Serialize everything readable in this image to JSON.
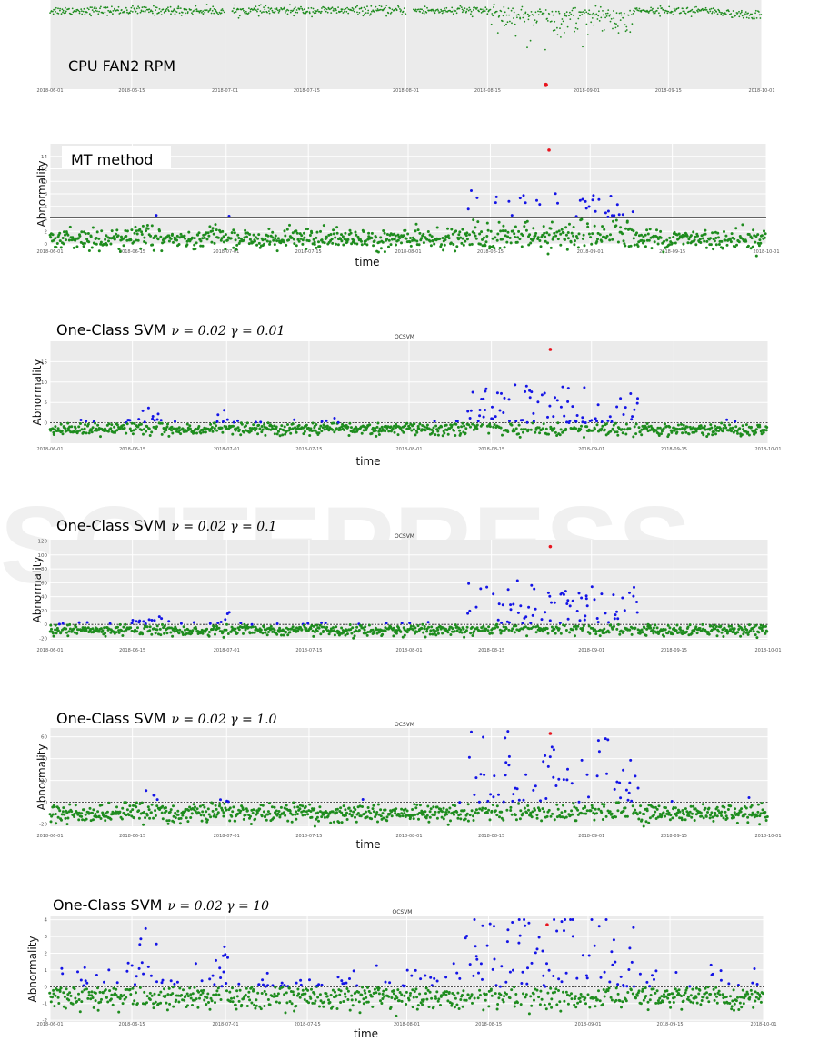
{
  "chart_data": [
    {
      "type": "scatter",
      "caption": "CPU FAN2 RPM",
      "title": "",
      "xlabel": "",
      "ylabel": "",
      "x_range": [
        "2018-06-01",
        "2018-10-01"
      ],
      "x_ticks": [
        "2018-06-01",
        "2018-06-15",
        "2018-07-01",
        "2018-07-15",
        "2018-08-01",
        "2018-08-15",
        "2018-09-01",
        "2018-09-15",
        "2018-10-01"
      ],
      "ylim": [
        1800,
        6000
      ],
      "y_ticks": [],
      "threshold": null,
      "normal_band": {
        "center": 5500,
        "spread": 100
      },
      "anomaly_point": {
        "x": "2018-08-25",
        "y": 2000
      },
      "series": [
        {
          "color": "#1e8c1e",
          "role": "normal"
        },
        {
          "color": "#e8141e",
          "role": "anomaly"
        }
      ]
    },
    {
      "type": "scatter",
      "caption": "MT method",
      "title": "",
      "xlabel": "time",
      "ylabel": "Abnormality",
      "x_range": [
        "2018-06-01",
        "2018-10-01"
      ],
      "x_ticks": [
        "2018-06-01",
        "2018-06-15",
        "2018-07-01",
        "2018-07-15",
        "2018-08-01",
        "2018-08-15",
        "2018-09-01",
        "2018-09-15",
        "2018-10-01"
      ],
      "ylim": [
        0,
        16
      ],
      "y_ticks": [
        "0",
        "2",
        "4",
        "6",
        "8",
        "10",
        "12",
        "14"
      ],
      "threshold": 4.2,
      "threshold_style": "solid",
      "normal_band": {
        "center": 0.8,
        "spread": 0.8
      },
      "anomaly_point": {
        "x": "2018-08-25",
        "y": 15
      },
      "series": [
        {
          "color": "#1e8c1e",
          "role": "normal"
        },
        {
          "color": "#1414e6",
          "role": "abnormal"
        },
        {
          "color": "#e8141e",
          "role": "anomaly"
        }
      ]
    },
    {
      "type": "scatter",
      "caption": "One-Class SVM",
      "caption_params": "𝜈 = 0.02  𝛾 = 0.01",
      "title": "OCSVM",
      "xlabel": "time",
      "ylabel": "Abnormality",
      "x_range": [
        "2018-06-01",
        "2018-10-01"
      ],
      "x_ticks": [
        "2018-06-01",
        "2018-06-15",
        "2018-07-01",
        "2018-07-15",
        "2018-08-01",
        "2018-08-15",
        "2018-09-01",
        "2018-09-15",
        "2018-10-01"
      ],
      "ylim": [
        -5,
        20
      ],
      "y_ticks": [
        "0",
        "5",
        "10",
        "15"
      ],
      "threshold": 0,
      "threshold_style": "dashed",
      "normal_band": {
        "center": -1.5,
        "spread": 0.8
      },
      "anomaly_point": {
        "x": "2018-08-25",
        "y": 18
      },
      "series": [
        {
          "color": "#1e8c1e",
          "role": "normal"
        },
        {
          "color": "#1414e6",
          "role": "abnormal"
        },
        {
          "color": "#e8141e",
          "role": "anomaly"
        }
      ]
    },
    {
      "type": "scatter",
      "caption": "One-Class SVM",
      "caption_params": "𝜈 = 0.02  𝛾 = 0.1",
      "title": "OCSVM",
      "xlabel": "",
      "ylabel": "Abnormality",
      "x_range": [
        "2018-06-01",
        "2018-10-01"
      ],
      "x_ticks": [
        "2018-06-01",
        "2018-06-15",
        "2018-07-01",
        "2018-07-15",
        "2018-08-01",
        "2018-08-15",
        "2018-09-01",
        "2018-09-15",
        "2018-10-01"
      ],
      "ylim": [
        -22,
        122
      ],
      "y_ticks": [
        "-20",
        "0",
        "20",
        "40",
        "60",
        "80",
        "100",
        "120"
      ],
      "threshold": 0,
      "threshold_style": "dashed",
      "normal_band": {
        "center": -8,
        "spread": 4
      },
      "anomaly_point": {
        "x": "2018-08-25",
        "y": 112
      },
      "series": [
        {
          "color": "#1e8c1e",
          "role": "normal"
        },
        {
          "color": "#1414e6",
          "role": "abnormal"
        },
        {
          "color": "#e8141e",
          "role": "anomaly"
        }
      ]
    },
    {
      "type": "scatter",
      "caption": "One-Class SVM",
      "caption_params": "𝜈 = 0.02  𝛾 = 1.0",
      "title": "OCSVM",
      "xlabel": "time",
      "ylabel": "Abnormality",
      "x_range": [
        "2018-06-01",
        "2018-10-01"
      ],
      "x_ticks": [
        "2018-06-01",
        "2018-06-15",
        "2018-07-01",
        "2018-07-15",
        "2018-08-01",
        "2018-08-15",
        "2018-09-01",
        "2018-09-15",
        "2018-10-01"
      ],
      "ylim": [
        -22,
        68
      ],
      "y_ticks": [
        "-20",
        "0",
        "20",
        "40",
        "60"
      ],
      "threshold": 0,
      "threshold_style": "dashed",
      "normal_band": {
        "center": -10,
        "spread": 4
      },
      "anomaly_point": {
        "x": "2018-08-25",
        "y": 63
      },
      "series": [
        {
          "color": "#1e8c1e",
          "role": "normal"
        },
        {
          "color": "#1414e6",
          "role": "abnormal"
        },
        {
          "color": "#e8141e",
          "role": "anomaly"
        }
      ]
    },
    {
      "type": "scatter",
      "caption": "One-Class SVM",
      "caption_params": "𝜈 = 0.02  𝛾 = 10",
      "title": "OCSVM",
      "xlabel": "time",
      "ylabel": "Abnormality",
      "x_range": [
        "2018-06-01",
        "2018-10-01"
      ],
      "x_ticks": [
        "2018-06-01",
        "2018-06-15",
        "2018-07-01",
        "2018-07-15",
        "2018-08-01",
        "2018-08-15",
        "2018-09-01",
        "2018-09-15",
        "2018-10-01"
      ],
      "ylim": [
        -2.1,
        4.2
      ],
      "y_ticks": [
        "-2",
        "-1",
        "0",
        "1",
        "2",
        "3",
        "4"
      ],
      "threshold": 0,
      "threshold_style": "dashed",
      "normal_band": {
        "center": -0.6,
        "spread": 0.4
      },
      "anomaly_point": {
        "x": "2018-08-25",
        "y": 3.7
      },
      "series": [
        {
          "color": "#1e8c1e",
          "role": "normal"
        },
        {
          "color": "#1414e6",
          "role": "abnormal"
        },
        {
          "color": "#e8141e",
          "role": "anomaly"
        }
      ]
    }
  ]
}
